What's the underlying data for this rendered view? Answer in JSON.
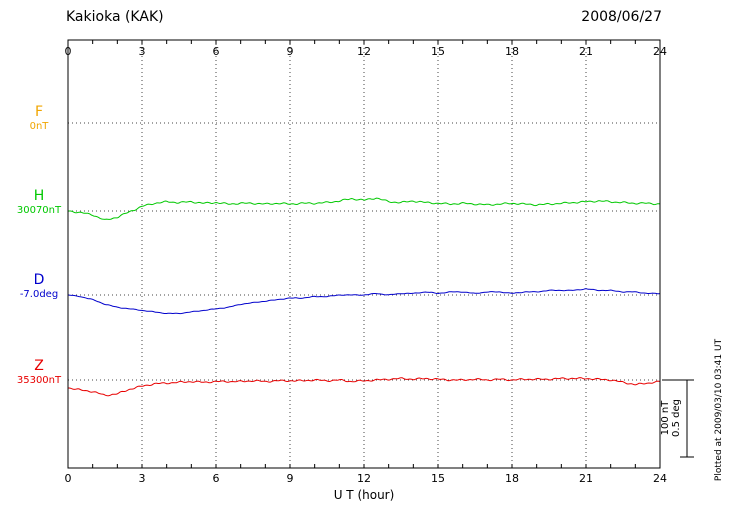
{
  "page": {
    "window_title": "Kakioka (KAK) magnetogram"
  },
  "chart_data": {
    "type": "line",
    "title": "Kakioka (KAK)",
    "date_label": "2008/06/27",
    "xlabel": "U T (hour)",
    "xlim": [
      0,
      24
    ],
    "xticks": [
      0,
      3,
      6,
      9,
      12,
      15,
      18,
      21,
      24
    ],
    "x_step_hours": 0.5,
    "grid": "dotted vertical lines every 3 hours; dotted horizontal baseline per component",
    "legend_position": "left margin component labels",
    "scale_bar": {
      "line1": "100 nT",
      "line2": "0.5 deg"
    },
    "plotted_at": "Plotted at 2009/03/10 03:41 UT",
    "series": [
      {
        "name": "F",
        "unit": "nT",
        "color": "#f0a500",
        "baseline_label": "0nT",
        "baseline": 0,
        "trace_visible": false,
        "values": []
      },
      {
        "name": "H",
        "unit": "nT",
        "color": "#00c800",
        "baseline_label": "30070nT",
        "baseline": 30070,
        "trace_visible": true,
        "values": [
          30070,
          30068,
          30065,
          30058,
          30062,
          30069,
          30076,
          30080,
          30082,
          30081,
          30082,
          30080,
          30081,
          30079,
          30080,
          30080,
          30079,
          30080,
          30079,
          30080,
          30080,
          30081,
          30083,
          30086,
          30084,
          30087,
          30082,
          30081,
          30083,
          30081,
          30080,
          30079,
          30080,
          30079,
          30078,
          30079,
          30080,
          30079,
          30078,
          30079,
          30080,
          30081,
          30082,
          30083,
          30082,
          30081,
          30080,
          30080,
          30079
        ]
      },
      {
        "name": "D",
        "unit": "deg",
        "color": "#0000cc",
        "baseline_label": "-7.0deg",
        "baseline": -7.0,
        "trace_visible": true,
        "values": [
          -7.0,
          -7.01,
          -7.03,
          -7.06,
          -7.08,
          -7.09,
          -7.1,
          -7.11,
          -7.12,
          -7.12,
          -7.11,
          -7.1,
          -7.09,
          -7.08,
          -7.06,
          -7.05,
          -7.04,
          -7.03,
          -7.02,
          -7.02,
          -7.01,
          -7.01,
          -7.0,
          -7.0,
          -7.0,
          -6.99,
          -7.0,
          -6.99,
          -6.99,
          -6.98,
          -6.99,
          -6.98,
          -6.98,
          -6.99,
          -6.98,
          -6.98,
          -6.99,
          -6.98,
          -6.98,
          -6.97,
          -6.97,
          -6.97,
          -6.96,
          -6.97,
          -6.97,
          -6.98,
          -6.98,
          -6.99,
          -6.99
        ]
      },
      {
        "name": "Z",
        "unit": "nT",
        "color": "#e80000",
        "baseline_label": "35300nT",
        "baseline": 35300,
        "trace_visible": true,
        "values": [
          35290,
          35287,
          35285,
          35280,
          35282,
          35288,
          35292,
          35295,
          35296,
          35297,
          35298,
          35297,
          35298,
          35298,
          35298,
          35299,
          35298,
          35299,
          35299,
          35299,
          35300,
          35299,
          35300,
          35298,
          35299,
          35300,
          35301,
          35302,
          35301,
          35302,
          35301,
          35300,
          35300,
          35301,
          35300,
          35301,
          35300,
          35301,
          35301,
          35301,
          35302,
          35302,
          35302,
          35301,
          35300,
          35297,
          35294,
          35296,
          35298
        ]
      }
    ]
  }
}
